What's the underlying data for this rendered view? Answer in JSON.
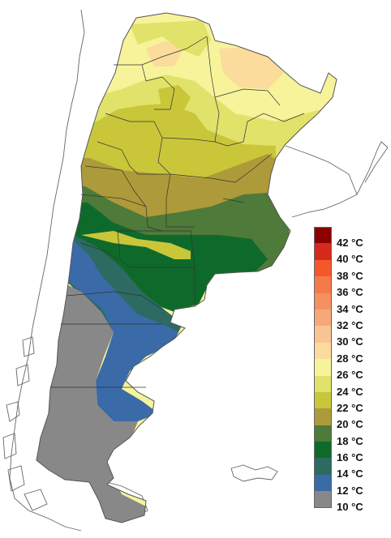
{
  "legend": {
    "unit": "°C",
    "items": [
      {
        "label": "42 °C",
        "color": "#8b0000"
      },
      {
        "label": "40 °C",
        "color": "#d42a1e"
      },
      {
        "label": "38 °C",
        "color": "#f4582a"
      },
      {
        "label": "36 °C",
        "color": "#f47a4c"
      },
      {
        "label": "34 °C",
        "color": "#f59060"
      },
      {
        "label": "32 °C",
        "color": "#f7a878"
      },
      {
        "label": "30 °C",
        "color": "#f9c494"
      },
      {
        "label": "28 °C",
        "color": "#fbdc9c"
      },
      {
        "label": "26 °C",
        "color": "#f7f39a"
      },
      {
        "label": "24 °C",
        "color": "#e1e26a"
      },
      {
        "label": "22 °C",
        "color": "#c9c63a"
      },
      {
        "label": "20 °C",
        "color": "#ad9a3a"
      },
      {
        "label": "18 °C",
        "color": "#4e7a3a"
      },
      {
        "label": "16 °C",
        "color": "#0e6a2a"
      },
      {
        "label": "14 °C",
        "color": "#2c6a62"
      },
      {
        "label": "12 °C",
        "color": "#3a6aa8"
      },
      {
        "label": "10 °C",
        "color": "#888888"
      }
    ]
  },
  "map": {
    "zone_colors": {
      "z28": "#fbdc9c",
      "z26": "#f7f39a",
      "z24": "#e1e26a",
      "z22": "#c9c63a",
      "z20": "#ad9a3a",
      "z18": "#4e7a3a",
      "z16": "#0e6a2a",
      "z14": "#2c6a62",
      "z12": "#3a6aa8",
      "z10": "#888888"
    },
    "border_color": "#333333",
    "outline_color": "#666666"
  }
}
